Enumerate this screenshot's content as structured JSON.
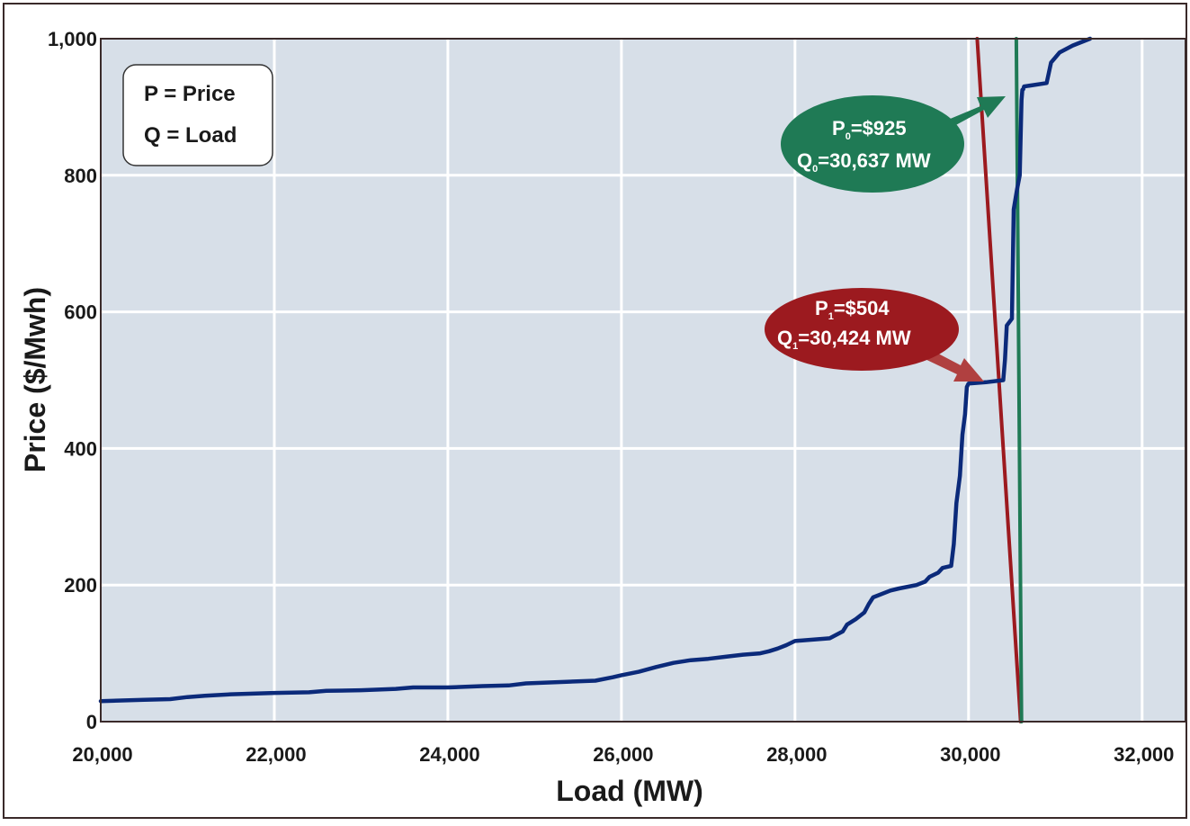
{
  "colors": {
    "plot_bg": "#d7dfe8",
    "grid": "#ffffff",
    "supply": "#0b2a7a",
    "demand_1": "#9c1a1f",
    "demand_0": "#1f7a55",
    "frame": "#3a2a2a",
    "text": "#1a1a1a"
  },
  "legend_box": {
    "line1": "P = Price",
    "line2": "Q = Load"
  },
  "callouts": {
    "p0_prefix": "P",
    "p0_sub": "0",
    "p0_value": "=$925",
    "q0_prefix": "Q",
    "q0_sub": "0",
    "q0_value": "=30,637 MW",
    "p1_prefix": "P",
    "p1_sub": "1",
    "p1_value": "=$504",
    "q1_prefix": "Q",
    "q1_sub": "1",
    "q1_value": "=30,424 MW"
  },
  "chart_data": {
    "type": "line",
    "xlabel": "Load (MW)",
    "ylabel": "Price ($/Mwh)",
    "xlim": [
      20000,
      32500
    ],
    "ylim": [
      0,
      1000
    ],
    "x_ticks": [
      20000,
      22000,
      24000,
      26000,
      28000,
      30000,
      32000
    ],
    "x_tick_labels": [
      "20,000",
      "22,000",
      "24,000",
      "26,000",
      "28,000",
      "30,000",
      "32,000"
    ],
    "y_ticks": [
      0,
      200,
      400,
      600,
      800,
      1000
    ],
    "y_tick_labels": [
      "0",
      "200",
      "400",
      "600",
      "800",
      "1,000"
    ],
    "grid": true,
    "series": [
      {
        "id": "supply",
        "x": [
          20000,
          20500,
          20800,
          21000,
          21200,
          21500,
          22000,
          22400,
          22600,
          23000,
          23400,
          23600,
          24000,
          24400,
          24700,
          24900,
          25300,
          25700,
          25900,
          26000,
          26200,
          26400,
          26600,
          26800,
          27000,
          27200,
          27400,
          27600,
          27700,
          27800,
          27900,
          28000,
          28400,
          28550,
          28600,
          28700,
          28800,
          28850,
          28900,
          29100,
          29200,
          29400,
          29500,
          29550,
          29650,
          29700,
          29800,
          29830,
          29860,
          29900,
          29930,
          29960,
          29980,
          30000,
          30200,
          30400,
          30420,
          30440,
          30500,
          30520,
          30560,
          30590,
          30610,
          30620,
          30630,
          30640,
          30900,
          30950,
          31050,
          31200,
          31400
        ],
        "y": [
          30,
          32,
          33,
          36,
          38,
          40,
          42,
          43,
          45,
          46,
          48,
          50,
          50,
          52,
          53,
          56,
          58,
          60,
          65,
          68,
          73,
          80,
          86,
          90,
          92,
          95,
          98,
          100,
          103,
          107,
          112,
          118,
          122,
          132,
          142,
          150,
          160,
          172,
          182,
          192,
          195,
          200,
          205,
          212,
          218,
          225,
          228,
          260,
          320,
          360,
          420,
          450,
          490,
          495,
          497,
          500,
          530,
          580,
          590,
          750,
          780,
          800,
          910,
          925,
          926,
          930,
          935,
          965,
          980,
          990,
          1000
        ]
      },
      {
        "id": "demand_1",
        "x": [
          30100,
          30600
        ],
        "y": [
          1000,
          0
        ]
      },
      {
        "id": "demand_0",
        "x": [
          30550,
          30610
        ],
        "y": [
          1000,
          0
        ]
      }
    ],
    "annotations": [
      {
        "text": "P0=$925 Q0=30,637 MW",
        "point": [
          30637,
          925
        ]
      },
      {
        "text": "P1=$504 Q1=30,424 MW",
        "point": [
          30424,
          504
        ]
      }
    ]
  }
}
